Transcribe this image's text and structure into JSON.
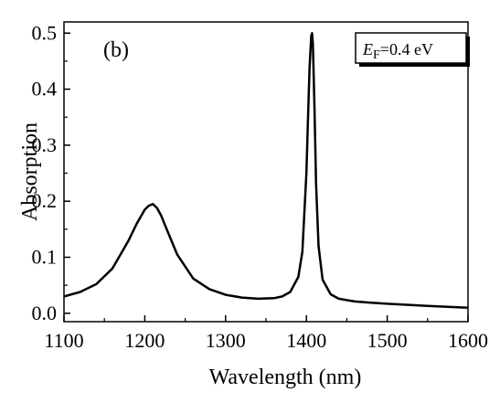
{
  "chart_data": {
    "type": "line",
    "panel_label": "(b)",
    "xlabel": "Wavelength (nm)",
    "ylabel": "Absorption",
    "xlim": [
      1100,
      1600
    ],
    "ylim": [
      -0.015,
      0.52
    ],
    "x_ticks": [
      "1100",
      "1200",
      "1300",
      "1400",
      "1500",
      "1600"
    ],
    "y_ticks": [
      "0.0",
      "0.1",
      "0.2",
      "0.3",
      "0.4",
      "0.5"
    ],
    "legend": {
      "symbol": "E",
      "subscript": "F",
      "rest": "=0.4 eV",
      "placement": "top-right"
    },
    "grid": false,
    "series": [
      {
        "color": "#000000",
        "x": [
          1100,
          1120,
          1140,
          1160,
          1180,
          1190,
          1200,
          1205,
          1210,
          1215,
          1220,
          1230,
          1240,
          1260,
          1280,
          1300,
          1320,
          1340,
          1360,
          1370,
          1380,
          1390,
          1395,
          1400,
          1402,
          1404,
          1406,
          1407,
          1408,
          1410,
          1412,
          1415,
          1420,
          1430,
          1440,
          1460,
          1480,
          1500,
          1550,
          1600
        ],
        "y": [
          0.03,
          0.038,
          0.052,
          0.08,
          0.13,
          0.16,
          0.185,
          0.192,
          0.195,
          0.188,
          0.175,
          0.14,
          0.105,
          0.062,
          0.043,
          0.033,
          0.028,
          0.026,
          0.027,
          0.03,
          0.038,
          0.065,
          0.11,
          0.25,
          0.35,
          0.44,
          0.495,
          0.5,
          0.48,
          0.37,
          0.23,
          0.12,
          0.06,
          0.034,
          0.026,
          0.021,
          0.019,
          0.017,
          0.013,
          0.01
        ]
      }
    ]
  }
}
